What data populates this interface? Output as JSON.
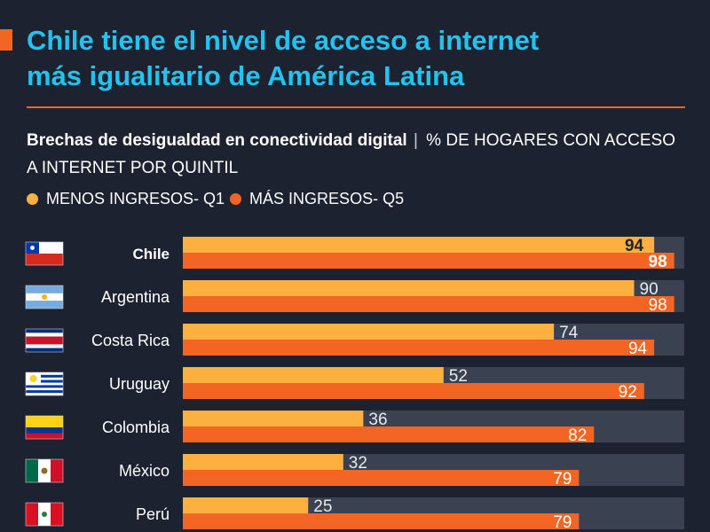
{
  "title": {
    "line1": "Chile tiene el nivel de acceso a internet",
    "line2": "más igualitario de América Latina"
  },
  "subtitle": {
    "bold": "Brechas de desigualdad en conectividad digital",
    "separator": "|",
    "rest": "% DE HOGARES CON ACCESO A INTERNET POR QUINTIL"
  },
  "legend": [
    {
      "label": "MENOS INGRESOS- Q1",
      "color": "#fbb040"
    },
    {
      "label": "MÁS INGRESOS- Q5",
      "color": "#f26522"
    }
  ],
  "chart_data": {
    "type": "bar",
    "orientation": "horizontal",
    "title": "Brechas de desigualdad en conectividad digital",
    "categories": [
      "Chile",
      "Argentina",
      "Costa Rica",
      "Uruguay",
      "Colombia",
      "México",
      "Perú"
    ],
    "series": [
      {
        "name": "MENOS INGRESOS- Q1",
        "color": "#fbb040",
        "values": [
          94,
          90,
          74,
          52,
          36,
          32,
          25
        ]
      },
      {
        "name": "MÁS INGRESOS- Q5",
        "color": "#f26522",
        "values": [
          98,
          98,
          94,
          92,
          82,
          79,
          79
        ]
      }
    ],
    "xlim": [
      0,
      100
    ],
    "track_color": "#3a4150",
    "highlight_category": "Chile",
    "flags": [
      "chile-flag-icon",
      "argentina-flag-icon",
      "costa-rica-flag-icon",
      "uruguay-flag-icon",
      "colombia-flag-icon",
      "mexico-flag-icon",
      "peru-flag-icon"
    ]
  }
}
